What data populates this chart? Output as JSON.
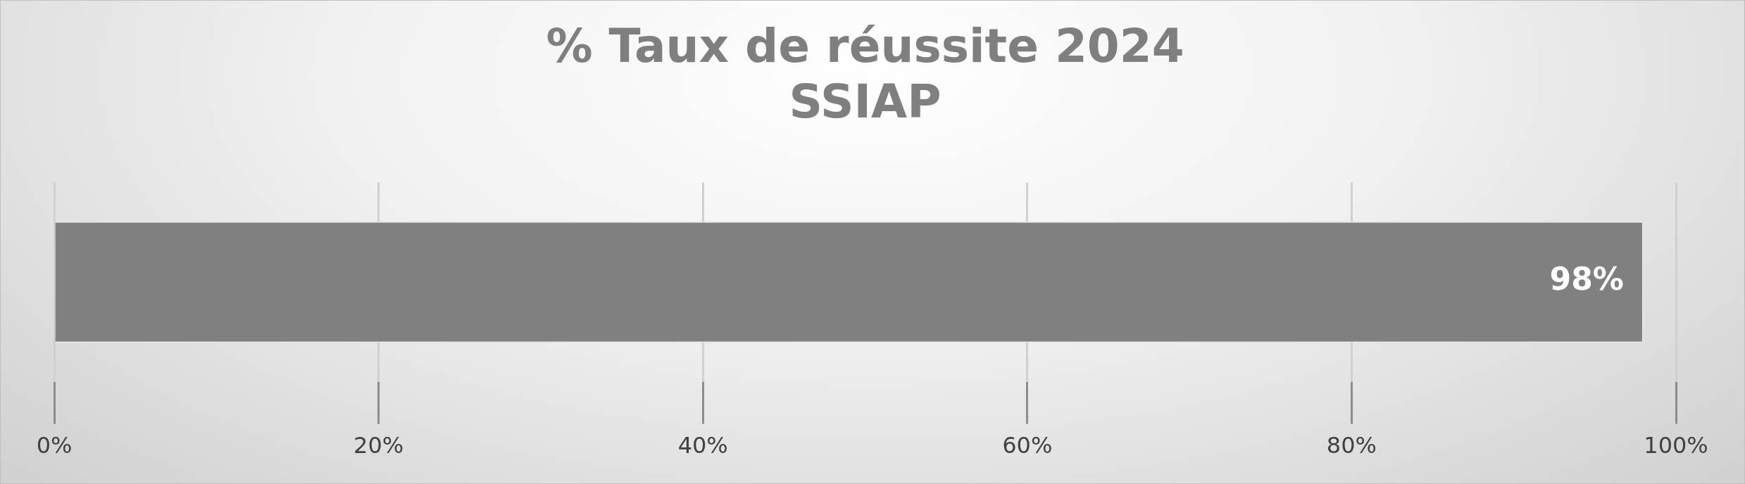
{
  "chart_data": {
    "type": "bar",
    "orientation": "horizontal",
    "title": "% Taux de réussite 2024\nSSIAP",
    "categories": [
      null
    ],
    "series": [
      {
        "color": "#808080",
        "values": [
          98
        ]
      }
    ],
    "value_labels": [
      "98%"
    ],
    "xlim": [
      0,
      100
    ],
    "xticks": [
      {
        "value": 0,
        "label": "0%"
      },
      {
        "value": 20,
        "label": "20%"
      },
      {
        "value": 40,
        "label": "40%"
      },
      {
        "value": 60,
        "label": "60%"
      },
      {
        "value": 80,
        "label": "80%"
      },
      {
        "value": 100,
        "label": "100%"
      }
    ],
    "grid": "x",
    "legend": false,
    "tick_labels": "x"
  }
}
